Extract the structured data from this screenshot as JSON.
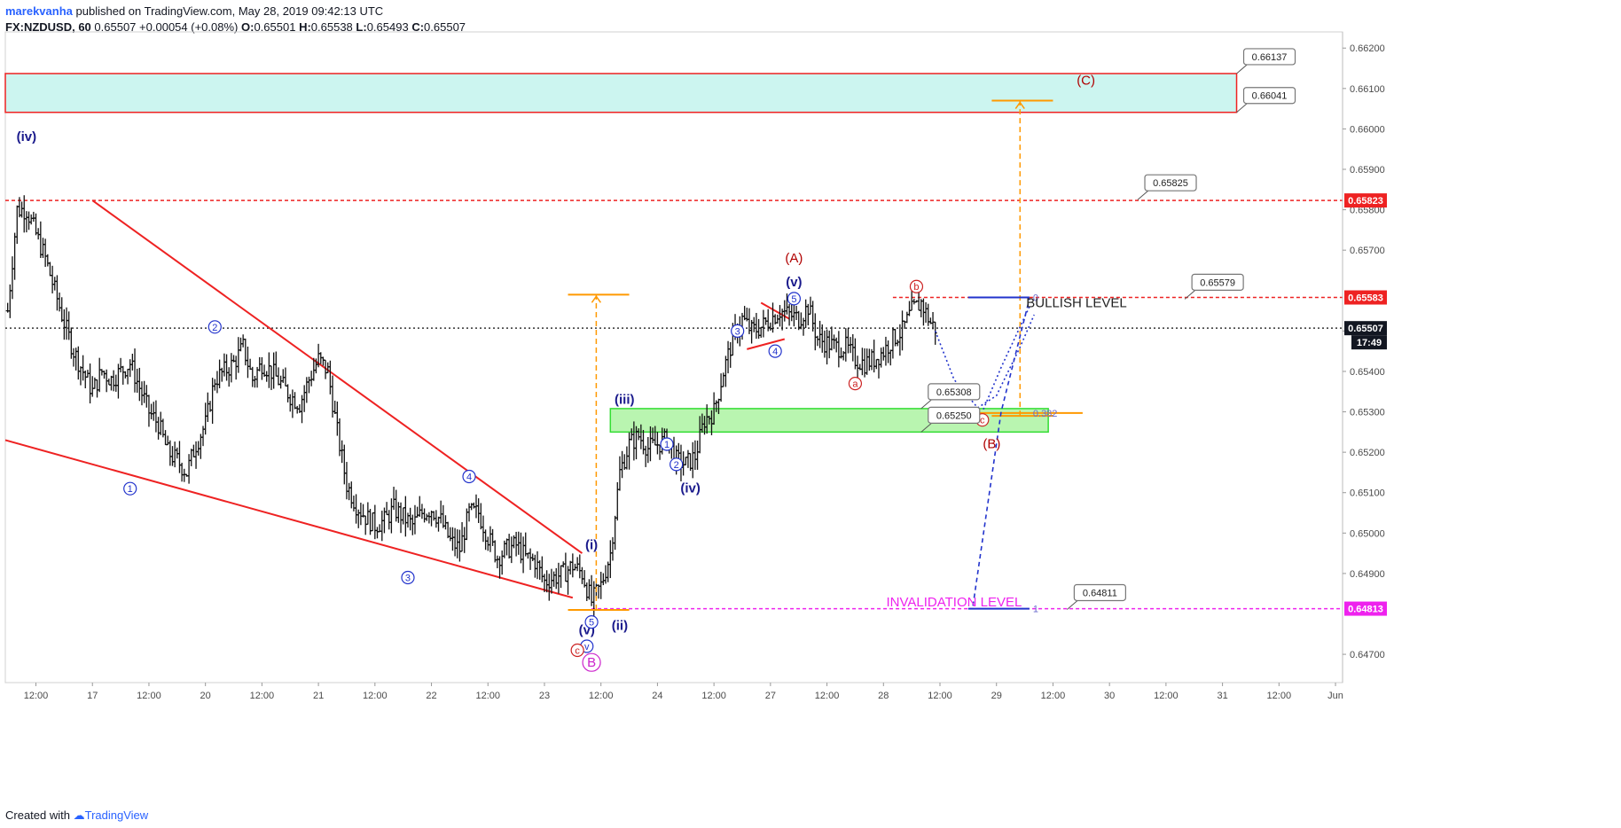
{
  "header": {
    "author": "marekvanha",
    "published": "published on TradingView.com, May 28, 2019 09:42:13 UTC",
    "symbol": "FX:NZDUSD, 60",
    "last": "0.65507",
    "change": "+0.00054 (+0.08%)",
    "o_label": "O:",
    "o": "0.65501",
    "h_label": "H:",
    "h": "0.65538",
    "l_label": "L:",
    "l": "0.65493",
    "c_label": "C:",
    "c": "0.65507"
  },
  "footer": {
    "created_with": "Created with",
    "brand": "TradingView"
  },
  "chart_data": {
    "type": "ohlc",
    "instrument": "FX:NZDUSD",
    "interval": "60",
    "ylim": [
      0.6463,
      0.6624
    ],
    "y_ticks": [
      "0.66200",
      "0.66100",
      "0.66000",
      "0.65900",
      "0.65800",
      "0.65700",
      "0.65500",
      "0.65400",
      "0.65300",
      "0.65200",
      "0.65100",
      "0.65000",
      "0.64900",
      "0.64700"
    ],
    "x_ticks": [
      {
        "label": "12:00",
        "t": -12
      },
      {
        "label": "17",
        "t": 0
      },
      {
        "label": "12:00",
        "t": 12
      },
      {
        "label": "20",
        "t": 24
      },
      {
        "label": "12:00",
        "t": 36
      },
      {
        "label": "21",
        "t": 48
      },
      {
        "label": "12:00",
        "t": 60
      },
      {
        "label": "22",
        "t": 72
      },
      {
        "label": "12:00",
        "t": 84
      },
      {
        "label": "23",
        "t": 96
      },
      {
        "label": "12:00",
        "t": 108
      },
      {
        "label": "24",
        "t": 120
      },
      {
        "label": "12:00",
        "t": 132
      },
      {
        "label": "27",
        "t": 144
      },
      {
        "label": "12:00",
        "t": 156
      },
      {
        "label": "28",
        "t": 168
      },
      {
        "label": "12:00",
        "t": 180
      },
      {
        "label": "29",
        "t": 192
      },
      {
        "label": "12:00",
        "t": 204
      },
      {
        "label": "30",
        "t": 216
      },
      {
        "label": "12:00",
        "t": 228
      },
      {
        "label": "31",
        "t": 240
      },
      {
        "label": "12:00",
        "t": 252
      },
      {
        "label": "Jun",
        "t": 264
      }
    ],
    "xlim": [
      -18.5,
      265.5
    ],
    "price_path": [
      [
        -18,
        0.6555
      ],
      [
        -16,
        0.658
      ],
      [
        -14,
        0.658
      ],
      [
        -12,
        0.6574
      ],
      [
        -10,
        0.6568
      ],
      [
        -8,
        0.656
      ],
      [
        -6,
        0.6552
      ],
      [
        -4,
        0.6545
      ],
      [
        -2,
        0.654
      ],
      [
        0,
        0.6535
      ],
      [
        2,
        0.654
      ],
      [
        4,
        0.6538
      ],
      [
        6,
        0.654
      ],
      [
        8,
        0.6542
      ],
      [
        10,
        0.6536
      ],
      [
        12,
        0.653
      ],
      [
        14,
        0.6527
      ],
      [
        16,
        0.652
      ],
      [
        18,
        0.6518
      ],
      [
        20,
        0.6515
      ],
      [
        22,
        0.6522
      ],
      [
        24,
        0.6527
      ],
      [
        26,
        0.6538
      ],
      [
        28,
        0.654
      ],
      [
        30,
        0.6542
      ],
      [
        32,
        0.6546
      ],
      [
        34,
        0.6538
      ],
      [
        36,
        0.6542
      ],
      [
        38,
        0.654
      ],
      [
        40,
        0.6537
      ],
      [
        42,
        0.6534
      ],
      [
        44,
        0.6532
      ],
      [
        46,
        0.6538
      ],
      [
        48,
        0.6543
      ],
      [
        50,
        0.654
      ],
      [
        52,
        0.6525
      ],
      [
        54,
        0.6512
      ],
      [
        56,
        0.6507
      ],
      [
        58,
        0.6504
      ],
      [
        60,
        0.6502
      ],
      [
        62,
        0.6503
      ],
      [
        64,
        0.6506
      ],
      [
        66,
        0.6504
      ],
      [
        68,
        0.6502
      ],
      [
        70,
        0.6505
      ],
      [
        72,
        0.6506
      ],
      [
        74,
        0.6503
      ],
      [
        76,
        0.6498
      ],
      [
        78,
        0.6496
      ],
      [
        80,
        0.6505
      ],
      [
        82,
        0.6505
      ],
      [
        84,
        0.6499
      ],
      [
        86,
        0.6494
      ],
      [
        88,
        0.6496
      ],
      [
        90,
        0.6497
      ],
      [
        92,
        0.6494
      ],
      [
        94,
        0.6493
      ],
      [
        96,
        0.6488
      ],
      [
        98,
        0.6489
      ],
      [
        100,
        0.649
      ],
      [
        102,
        0.6492
      ],
      [
        104,
        0.649
      ],
      [
        106,
        0.6483
      ],
      [
        108,
        0.6487
      ],
      [
        110,
        0.6495
      ],
      [
        112,
        0.6515
      ],
      [
        114,
        0.6522
      ],
      [
        116,
        0.6524
      ],
      [
        118,
        0.6521
      ],
      [
        120,
        0.6522
      ],
      [
        122,
        0.6523
      ],
      [
        124,
        0.6518
      ],
      [
        126,
        0.6517
      ],
      [
        128,
        0.6519
      ],
      [
        130,
        0.6528
      ],
      [
        132,
        0.653
      ],
      [
        134,
        0.654
      ],
      [
        136,
        0.6548
      ],
      [
        138,
        0.6553
      ],
      [
        140,
        0.655
      ],
      [
        142,
        0.6551
      ],
      [
        144,
        0.6553
      ],
      [
        146,
        0.6555
      ],
      [
        148,
        0.6554
      ],
      [
        150,
        0.6553
      ],
      [
        152,
        0.6556
      ],
      [
        154,
        0.6548
      ],
      [
        156,
        0.6547
      ],
      [
        158,
        0.6546
      ],
      [
        160,
        0.6546
      ],
      [
        162,
        0.6543
      ],
      [
        164,
        0.6542
      ],
      [
        166,
        0.6543
      ],
      [
        168,
        0.6545
      ],
      [
        170,
        0.6548
      ],
      [
        172,
        0.655
      ],
      [
        174,
        0.6555
      ],
      [
        176,
        0.6557
      ],
      [
        178,
        0.6552
      ],
      [
        179,
        0.65507
      ]
    ],
    "zones": [
      {
        "name": "target-zone",
        "from": 0.66137,
        "to": 0.66041,
        "t0": -18.5,
        "t1": 243,
        "fill": "#ccf5f0",
        "stroke": "#ee2222"
      },
      {
        "name": "support-zone",
        "from": 0.65308,
        "to": 0.6525,
        "t0": 110,
        "t1": 203,
        "fill": "#b9f5b0",
        "stroke": "#33dd33"
      }
    ],
    "levels": [
      {
        "name": "resistance-0.65823",
        "price": 0.65823,
        "t0": -18.5,
        "t1": 265.5,
        "color": "#ee2222",
        "style": "dash"
      },
      {
        "name": "bullish-level",
        "price": 0.65583,
        "t0": 170,
        "t1": 265.5,
        "color": "#ee2222",
        "style": "dash"
      },
      {
        "name": "last-price-line",
        "price": 0.65507,
        "t0": -18.5,
        "t1": 265.5,
        "color": "#333333",
        "style": "dot"
      },
      {
        "name": "invalidation-level",
        "price": 0.64813,
        "t0": 106,
        "t1": 265.5,
        "color": "#ee22ee",
        "style": "dash"
      }
    ],
    "price_tags": [
      {
        "price": 0.65823,
        "label": "0.65823",
        "bg": "#ee2222",
        "fg": "#ffffff"
      },
      {
        "price": 0.65583,
        "label": "0.65583",
        "bg": "#ee2222",
        "fg": "#ffffff"
      },
      {
        "price": 0.65507,
        "label": "0.65507",
        "bg": "#131722",
        "fg": "#ffffff"
      },
      {
        "price": 0.64813,
        "label": "0.64813",
        "bg": "#ee22ee",
        "fg": "#ffffff"
      }
    ],
    "countdown": "17:49",
    "callouts": [
      {
        "label": "0.66137",
        "price": 0.66137,
        "t": 243
      },
      {
        "label": "0.66041",
        "price": 0.66041,
        "t": 243
      },
      {
        "label": "0.65825",
        "price": 0.65825,
        "t": 222
      },
      {
        "label": "0.65579",
        "price": 0.65579,
        "t": 232
      },
      {
        "label": "0.65308",
        "price": 0.65308,
        "t": 176
      },
      {
        "label": "0.65250",
        "price": 0.6525,
        "t": 176
      },
      {
        "label": "0.64811",
        "price": 0.64811,
        "t": 207
      }
    ],
    "trendlines": [
      {
        "t0": 0,
        "p0": 0.65823,
        "t1": 104,
        "p1": 0.6495,
        "color": "#ee2222"
      },
      {
        "t0": -18.5,
        "p0": 0.6523,
        "t1": 102,
        "p1": 0.6484,
        "color": "#ee2222"
      },
      {
        "t0": 142,
        "p0": 0.6557,
        "t1": 148,
        "p1": 0.6553,
        "color": "#ee2222"
      },
      {
        "t0": 139,
        "p0": 0.65455,
        "t1": 147,
        "p1": 0.6548,
        "color": "#ee2222"
      }
    ],
    "projections": [
      {
        "t": 107,
        "from": 0.6481,
        "to": 0.6559,
        "cap_t0": 101,
        "cap_t1": 114,
        "color": "#ff9900"
      },
      {
        "t": 197,
        "from": 0.6529,
        "to": 0.6607,
        "cap_t0": 191,
        "cap_t1": 204,
        "color": "#ff9900"
      }
    ],
    "fib_tool": {
      "t0": 186,
      "t1": 199,
      "top": 0.65583,
      "bottom": 0.64813,
      "mid": 0.65297,
      "labels": [
        "0",
        "0.382",
        "1"
      ],
      "line_color": "#2233cc",
      "mid_color": "#ff9900"
    },
    "labels": [
      {
        "text": "(iv)",
        "t": -14,
        "price": 0.6597,
        "color": "#1a1a8c",
        "style": "plain"
      },
      {
        "text": "(A)",
        "t": 149,
        "price": 0.6567,
        "color": "#b00000",
        "style": "plain"
      },
      {
        "text": "(v)",
        "t": 149,
        "price": 0.6561,
        "color": "#1a1a8c",
        "style": "plain"
      },
      {
        "text": "(iii)",
        "t": 113,
        "price": 0.6532,
        "color": "#1a1a8c",
        "style": "plain"
      },
      {
        "text": "(iv)",
        "t": 127,
        "price": 0.651,
        "color": "#1a1a8c",
        "style": "plain"
      },
      {
        "text": "(i)",
        "t": 106,
        "price": 0.6496,
        "color": "#1a1a8c",
        "style": "plain"
      },
      {
        "text": "(ii)",
        "t": 112,
        "price": 0.6476,
        "color": "#1a1a8c",
        "style": "plain"
      },
      {
        "text": "(v)",
        "t": 105,
        "price": 0.6475,
        "color": "#1a1a8c",
        "style": "plain"
      },
      {
        "text": "(B)",
        "t": 191,
        "price": 0.6521,
        "color": "#b00000",
        "style": "plain"
      },
      {
        "text": "(C)",
        "t": 211,
        "price": 0.6611,
        "color": "#b00000",
        "style": "plain"
      },
      {
        "text": "1",
        "t": 8,
        "price": 0.6511,
        "color": "#2233cc",
        "style": "circle"
      },
      {
        "text": "2",
        "t": 26,
        "price": 0.6551,
        "color": "#2233cc",
        "style": "circle"
      },
      {
        "text": "3",
        "t": 67,
        "price": 0.6489,
        "color": "#2233cc",
        "style": "circle"
      },
      {
        "text": "4",
        "t": 80,
        "price": 0.6514,
        "color": "#2233cc",
        "style": "circle"
      },
      {
        "text": "5",
        "t": 106,
        "price": 0.6478,
        "color": "#2233cc",
        "style": "circle"
      },
      {
        "text": "1",
        "t": 122,
        "price": 0.6522,
        "color": "#2233cc",
        "style": "circle"
      },
      {
        "text": "2",
        "t": 124,
        "price": 0.6517,
        "color": "#2233cc",
        "style": "circle"
      },
      {
        "text": "3",
        "t": 137,
        "price": 0.655,
        "color": "#2233cc",
        "style": "circle"
      },
      {
        "text": "4",
        "t": 145,
        "price": 0.6545,
        "color": "#2233cc",
        "style": "circle"
      },
      {
        "text": "5",
        "t": 149,
        "price": 0.6558,
        "color": "#2233cc",
        "style": "circle"
      },
      {
        "text": "v",
        "t": 105,
        "price": 0.6472,
        "color": "#2233cc",
        "style": "circle"
      },
      {
        "text": "a",
        "t": 162,
        "price": 0.6537,
        "color": "#cc2222",
        "style": "circle"
      },
      {
        "text": "b",
        "t": 175,
        "price": 0.6561,
        "color": "#cc2222",
        "style": "circle"
      },
      {
        "text": "c",
        "t": 103,
        "price": 0.6471,
        "color": "#cc2222",
        "style": "circle"
      },
      {
        "text": "c",
        "t": 189,
        "price": 0.6528,
        "color": "#cc2222",
        "style": "circle"
      },
      {
        "text": "B",
        "t": 106,
        "price": 0.6468,
        "color": "#cc22cc",
        "style": "circle-big"
      }
    ],
    "text_notes": [
      {
        "text": "BULLISH LEVEL",
        "t": 209,
        "price": 0.6557,
        "color": "#222222"
      },
      {
        "text": "INVALIDATION LEVEL",
        "t": 183,
        "price": 0.6483,
        "color": "#ee22ee"
      }
    ],
    "forecast_paths": [
      {
        "color": "#2233cc",
        "style": "dot",
        "points": [
          [
            179,
            0.655
          ],
          [
            183,
            0.6538
          ],
          [
            188,
            0.6531
          ],
          [
            192,
            0.6534
          ],
          [
            197,
            0.6546
          ],
          [
            200,
            0.6554
          ]
        ]
      },
      {
        "color": "#2233cc",
        "style": "dot",
        "points": [
          [
            199,
            0.6556
          ],
          [
            193,
            0.6541
          ],
          [
            189,
            0.653
          ]
        ]
      },
      {
        "color": "#2233cc",
        "style": "dash",
        "points": [
          [
            187,
            0.6482
          ],
          [
            193,
            0.653
          ],
          [
            199,
            0.6558
          ]
        ]
      }
    ]
  }
}
